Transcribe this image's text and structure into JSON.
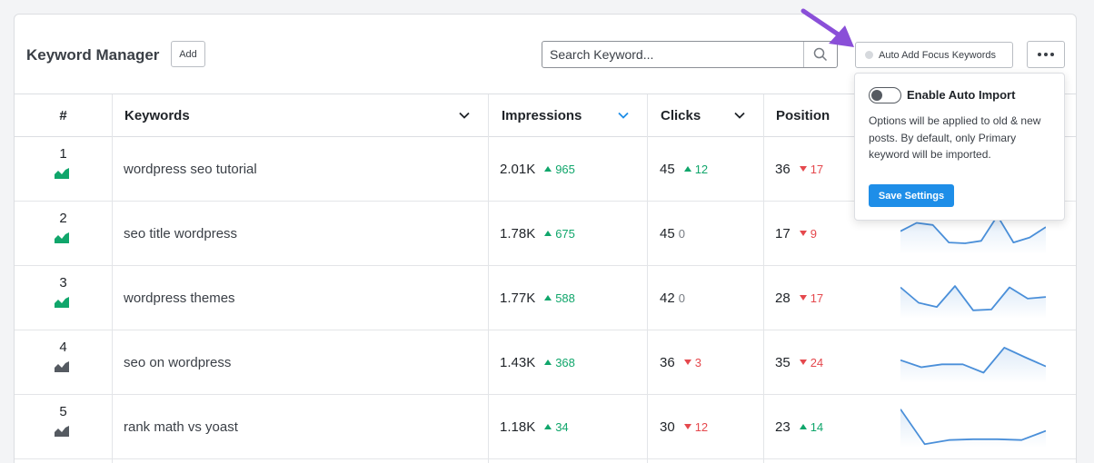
{
  "header": {
    "title": "Keyword Manager",
    "add_label": "Add",
    "search_placeholder": "Search Keyword...",
    "auto_add_label": "Auto Add Focus Keywords"
  },
  "table": {
    "columns": {
      "rank": "#",
      "keywords": "Keywords",
      "impressions": "Impressions",
      "clicks": "Clicks",
      "position": "Position"
    },
    "rows": [
      {
        "rank": "1",
        "trend": "up",
        "keyword": "wordpress seo tutorial",
        "impressions": "2.01K",
        "impressions_delta": "965",
        "impressions_dir": "up",
        "clicks": "45",
        "clicks_delta": "12",
        "clicks_dir": "up",
        "position": "36",
        "position_delta": "17",
        "position_dir": "down",
        "spark": []
      },
      {
        "rank": "2",
        "trend": "up",
        "keyword": "seo title wordpress",
        "impressions": "1.78K",
        "impressions_delta": "675",
        "impressions_dir": "up",
        "clicks": "45",
        "clicks_delta": "0",
        "clicks_dir": "zero",
        "position": "17",
        "position_delta": "9",
        "position_dir": "down",
        "spark": [
          0.45,
          0.25,
          0.3,
          0.72,
          0.74,
          0.68,
          0.08,
          0.72,
          0.6,
          0.35
        ]
      },
      {
        "rank": "3",
        "trend": "up",
        "keyword": "wordpress themes",
        "impressions": "1.77K",
        "impressions_delta": "588",
        "impressions_dir": "up",
        "clicks": "42",
        "clicks_delta": "0",
        "clicks_dir": "zero",
        "position": "28",
        "position_delta": "17",
        "position_dir": "down",
        "spark": [
          0.25,
          0.62,
          0.72,
          0.22,
          0.8,
          0.78,
          0.25,
          0.52,
          0.48
        ]
      },
      {
        "rank": "4",
        "trend": "flat",
        "keyword": "seo on wordpress",
        "impressions": "1.43K",
        "impressions_delta": "368",
        "impressions_dir": "up",
        "clicks": "36",
        "clicks_delta": "3",
        "clicks_dir": "down",
        "position": "35",
        "position_delta": "24",
        "position_dir": "down",
        "spark": [
          0.45,
          0.62,
          0.55,
          0.55,
          0.75,
          0.15,
          0.38,
          0.6
        ]
      },
      {
        "rank": "5",
        "trend": "flat",
        "keyword": "rank math vs yoast",
        "impressions": "1.18K",
        "impressions_delta": "34",
        "impressions_dir": "up",
        "clicks": "30",
        "clicks_delta": "12",
        "clicks_dir": "down",
        "position": "23",
        "position_delta": "14",
        "position_dir": "up",
        "spark": [
          0.08,
          0.92,
          0.82,
          0.8,
          0.8,
          0.82,
          0.6
        ]
      }
    ]
  },
  "popup": {
    "title": "Enable Auto Import",
    "description": "Options will be applied to old & new posts. By default, only Primary keyword will be imported.",
    "save_label": "Save Settings"
  },
  "colors": {
    "accent": "#1e8ee8",
    "up": "#10a66b",
    "down": "#e5484d",
    "spark": "#4a8fd9",
    "arrow": "#8a4fd8"
  }
}
